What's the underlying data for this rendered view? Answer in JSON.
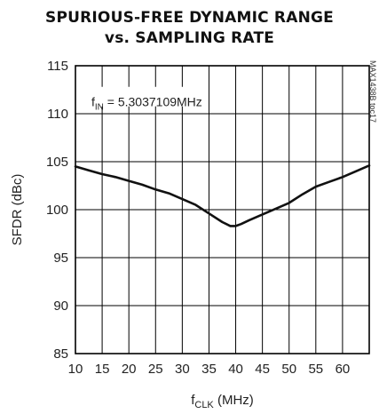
{
  "chart_data": {
    "type": "line",
    "title_line1": "SPURIOUS-FREE DYNAMIC RANGE",
    "title_line2": "vs. SAMPLING RATE",
    "side_label": "MAX1438B toc17",
    "annotation": {
      "main": "f",
      "sub": "IN",
      "rest": " = 5.3037109MHz"
    },
    "xlabel": {
      "main": "f",
      "sub": "CLK",
      "rest": " (MHz)"
    },
    "ylabel": "SFDR (dBc)",
    "xlim": [
      10,
      65
    ],
    "ylim": [
      85,
      115
    ],
    "x_ticks": [
      10,
      15,
      20,
      25,
      30,
      35,
      40,
      45,
      50,
      55,
      60
    ],
    "y_ticks": [
      85,
      90,
      95,
      100,
      105,
      110,
      115
    ],
    "grid": true,
    "series": [
      {
        "x": [
          10,
          12.5,
          15,
          17.5,
          20,
          22.5,
          25,
          27.5,
          30,
          32.5,
          35,
          37.5,
          39,
          40,
          41,
          42.5,
          45,
          47.5,
          50,
          52.5,
          55,
          57.5,
          60,
          62.5,
          65
        ],
        "values": [
          104.5,
          104.1,
          103.7,
          103.4,
          103.0,
          102.6,
          102.1,
          101.7,
          101.1,
          100.5,
          99.6,
          98.7,
          98.3,
          98.3,
          98.5,
          98.9,
          99.5,
          100.1,
          100.7,
          101.6,
          102.4,
          102.9,
          103.4,
          104.0,
          104.6
        ]
      }
    ],
    "colors": {
      "line": "#111111",
      "grid": "#000000",
      "text": "#222222"
    }
  }
}
